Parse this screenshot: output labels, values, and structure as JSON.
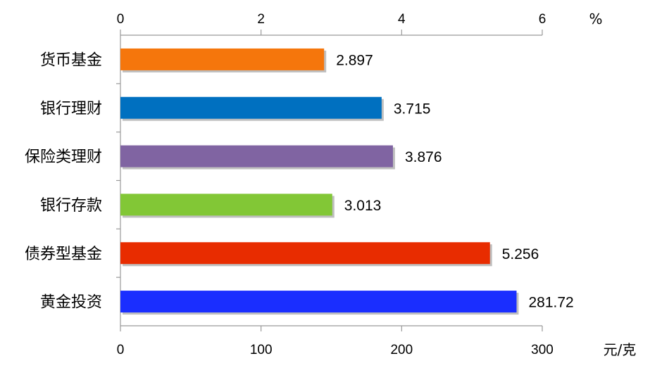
{
  "chart_data": {
    "type": "bar",
    "orientation": "horizontal",
    "categories": [
      "货币基金",
      "银行理财",
      "保险类理财",
      "银行存款",
      "债券型基金",
      "黄金投资"
    ],
    "values": [
      2.897,
      3.715,
      3.876,
      3.013,
      5.256,
      281.72
    ],
    "value_labels": [
      "2.897",
      "3.715",
      "3.876",
      "3.013",
      "5.256",
      "281.72"
    ],
    "axis": [
      "top",
      "top",
      "top",
      "top",
      "top",
      "bottom"
    ],
    "colors": [
      "#F5760C",
      "#0070C0",
      "#8064A2",
      "#82C736",
      "#E82C00",
      "#1A2EFF"
    ],
    "top_axis": {
      "range": [
        0,
        6
      ],
      "ticks": [
        "0",
        "2",
        "4",
        "6"
      ],
      "unit": "%"
    },
    "bottom_axis": {
      "range": [
        0,
        300
      ],
      "ticks": [
        "0",
        "100",
        "200",
        "300"
      ],
      "unit": "元/克"
    },
    "grid": false,
    "legend": "none"
  }
}
